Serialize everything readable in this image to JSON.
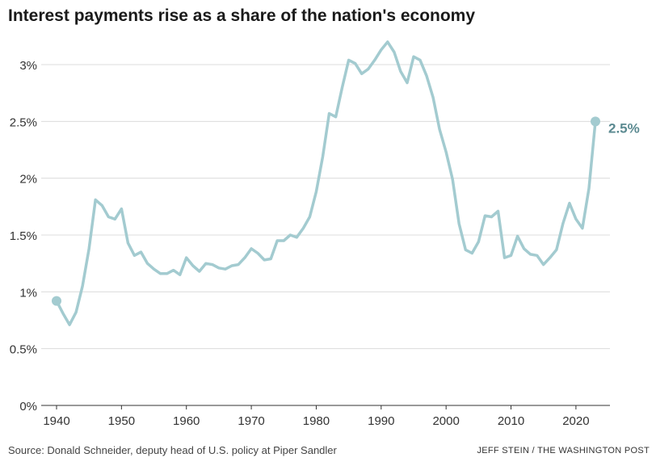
{
  "chart_data": {
    "type": "line",
    "title": "Interest payments rise as a share of the nation's economy",
    "xlabel": "",
    "ylabel": "",
    "xlim": [
      1940,
      2023
    ],
    "ylim": [
      0,
      3.2
    ],
    "xticks": [
      1940,
      1950,
      1960,
      1970,
      1980,
      1990,
      2000,
      2010,
      2020
    ],
    "xtick_labels": [
      "1940",
      "1950",
      "1960",
      "1970",
      "1980",
      "1990",
      "2000",
      "2010",
      "2020"
    ],
    "yticks": [
      0,
      0.5,
      1,
      1.5,
      2,
      2.5,
      3
    ],
    "ytick_labels": [
      "0%",
      "0.5%",
      "1%",
      "1.5%",
      "2%",
      "2.5%",
      "3%"
    ],
    "grid": true,
    "series": [
      {
        "name": "",
        "color": "#a3cbd0",
        "endpoint_label": "2.5%",
        "endpoint_label_color": "#5b8a91",
        "points": [
          [
            1940,
            0.92
          ],
          [
            1941,
            0.81
          ],
          [
            1942,
            0.71
          ],
          [
            1943,
            0.82
          ],
          [
            1944,
            1.05
          ],
          [
            1945,
            1.38
          ],
          [
            1946,
            1.81
          ],
          [
            1947,
            1.76
          ],
          [
            1948,
            1.66
          ],
          [
            1949,
            1.64
          ],
          [
            1950,
            1.73
          ],
          [
            1951,
            1.43
          ],
          [
            1952,
            1.32
          ],
          [
            1953,
            1.35
          ],
          [
            1954,
            1.25
          ],
          [
            1955,
            1.2
          ],
          [
            1956,
            1.16
          ],
          [
            1957,
            1.16
          ],
          [
            1958,
            1.19
          ],
          [
            1959,
            1.15
          ],
          [
            1960,
            1.3
          ],
          [
            1961,
            1.23
          ],
          [
            1962,
            1.18
          ],
          [
            1963,
            1.25
          ],
          [
            1964,
            1.24
          ],
          [
            1965,
            1.21
          ],
          [
            1966,
            1.2
          ],
          [
            1967,
            1.23
          ],
          [
            1968,
            1.24
          ],
          [
            1969,
            1.3
          ],
          [
            1970,
            1.38
          ],
          [
            1971,
            1.34
          ],
          [
            1972,
            1.28
          ],
          [
            1973,
            1.29
          ],
          [
            1974,
            1.45
          ],
          [
            1975,
            1.45
          ],
          [
            1976,
            1.5
          ],
          [
            1977,
            1.48
          ],
          [
            1978,
            1.56
          ],
          [
            1979,
            1.66
          ],
          [
            1980,
            1.88
          ],
          [
            1981,
            2.19
          ],
          [
            1982,
            2.57
          ],
          [
            1983,
            2.54
          ],
          [
            1984,
            2.8
          ],
          [
            1985,
            3.04
          ],
          [
            1986,
            3.01
          ],
          [
            1987,
            2.92
          ],
          [
            1988,
            2.96
          ],
          [
            1989,
            3.04
          ],
          [
            1990,
            3.13
          ],
          [
            1991,
            3.2
          ],
          [
            1992,
            3.11
          ],
          [
            1993,
            2.94
          ],
          [
            1994,
            2.84
          ],
          [
            1995,
            3.07
          ],
          [
            1996,
            3.04
          ],
          [
            1997,
            2.9
          ],
          [
            1998,
            2.71
          ],
          [
            1999,
            2.43
          ],
          [
            2000,
            2.23
          ],
          [
            2001,
            1.99
          ],
          [
            2002,
            1.6
          ],
          [
            2003,
            1.37
          ],
          [
            2004,
            1.34
          ],
          [
            2005,
            1.44
          ],
          [
            2006,
            1.67
          ],
          [
            2007,
            1.66
          ],
          [
            2008,
            1.71
          ],
          [
            2009,
            1.3
          ],
          [
            2010,
            1.32
          ],
          [
            2011,
            1.49
          ],
          [
            2012,
            1.38
          ],
          [
            2013,
            1.33
          ],
          [
            2014,
            1.32
          ],
          [
            2015,
            1.24
          ],
          [
            2016,
            1.3
          ],
          [
            2017,
            1.37
          ],
          [
            2018,
            1.6
          ],
          [
            2019,
            1.78
          ],
          [
            2020,
            1.64
          ],
          [
            2021,
            1.56
          ],
          [
            2022,
            1.91
          ],
          [
            2023,
            2.5
          ]
        ]
      }
    ],
    "source": "Source: Donald Schneider, deputy head of U.S. policy at Piper Sandler",
    "credit": "JEFF STEIN / THE WASHINGTON POST"
  }
}
